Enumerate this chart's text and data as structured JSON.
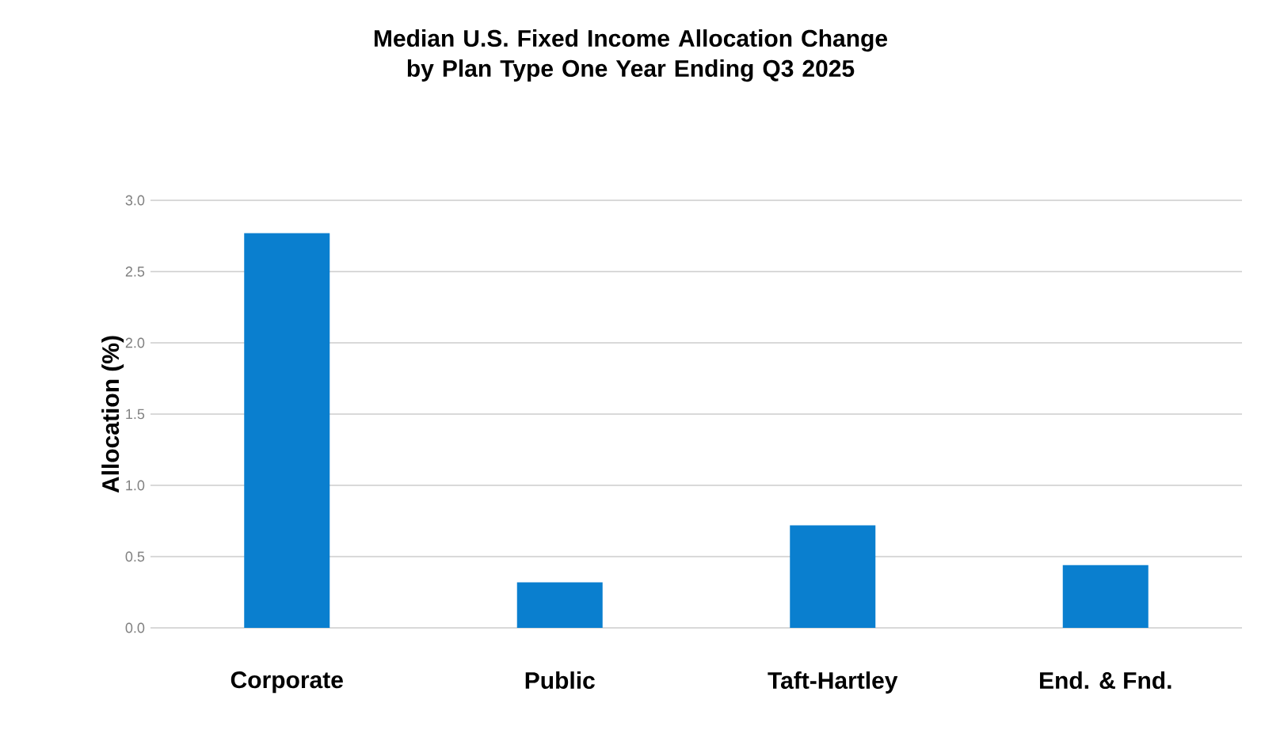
{
  "chart_data": {
    "type": "bar",
    "title": "Median U.S. Fixed Income Allocation Change by Plan Type One Year Ending Q3 2025",
    "ylabel": "Allocation (%)",
    "categories": [
      "Corporate",
      "Public",
      "Taft-Hartley",
      "End. & Fnd."
    ],
    "values": [
      2.77,
      0.32,
      0.72,
      0.44
    ],
    "color": "#0a7fcf",
    "ylim": [
      0,
      3
    ],
    "yticks": [
      {
        "value": 0,
        "label": "0.0"
      },
      {
        "value": 0.5,
        "label": "0.5"
      },
      {
        "value": 1,
        "label": "1.0"
      },
      {
        "value": 1.5,
        "label": "1.5"
      },
      {
        "value": 2,
        "label": "2.0"
      },
      {
        "value": 2.5,
        "label": "2.5"
      },
      {
        "value": 3,
        "label": "3.0"
      }
    ],
    "grid": "y"
  }
}
